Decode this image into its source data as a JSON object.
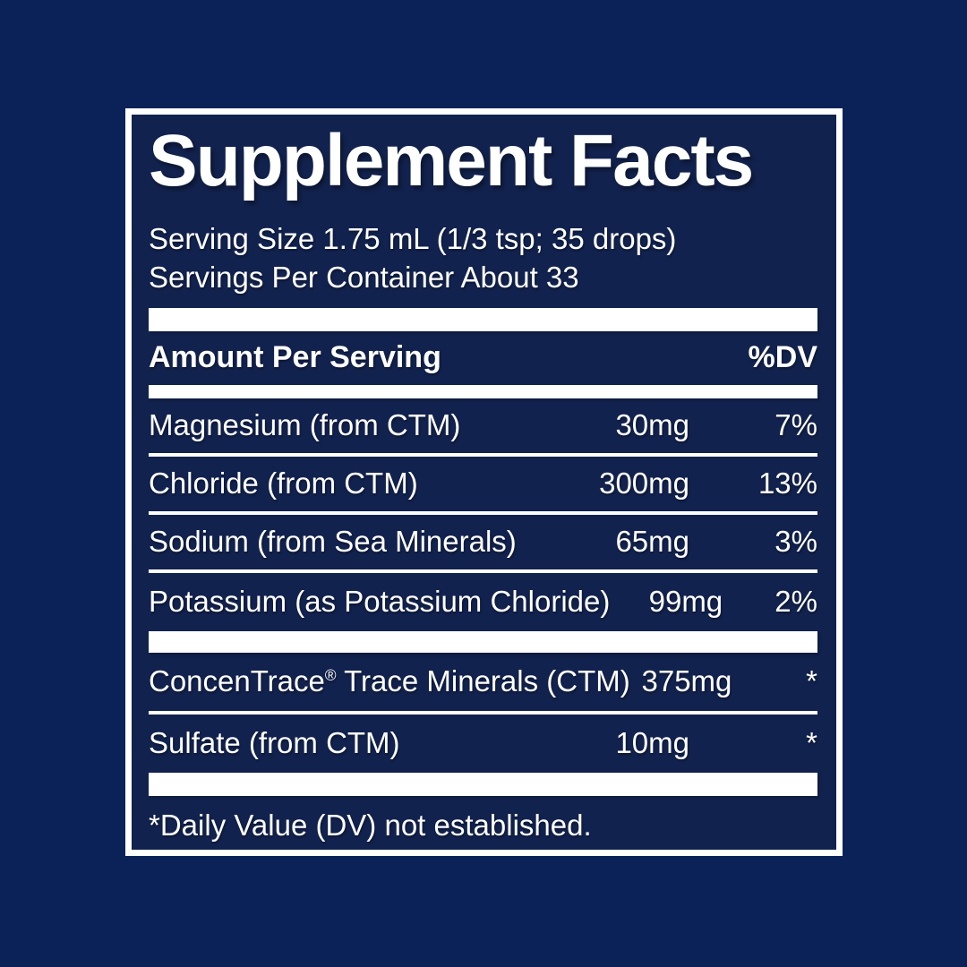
{
  "label": {
    "title": "Supplement Facts",
    "serving_size": "Serving Size 1.75 mL (1/3 tsp; 35 drops)",
    "servings_per_container": "Servings Per Container About 33",
    "header": {
      "amount_label": "Amount Per Serving",
      "dv_label": "%DV"
    },
    "rows": [
      {
        "name": "Magnesium (from CTM)",
        "amount": "30mg",
        "dv": "7%"
      },
      {
        "name": "Chloride (from CTM)",
        "amount": "300mg",
        "dv": "13%"
      },
      {
        "name": "Sodium (from Sea Minerals)",
        "amount": "65mg",
        "dv": "3%"
      },
      {
        "name": "Potassium (as Potassium Chloride)",
        "amount": "99mg",
        "dv": "2%"
      }
    ],
    "rows_secondary": [
      {
        "name_pre": "ConcenTrace",
        "name_sup": "®",
        "name_post": " Trace Minerals (CTM)",
        "amount": "375mg",
        "dv": "*"
      },
      {
        "name_pre": "Sulfate (from CTM)",
        "name_sup": "",
        "name_post": "",
        "amount": "10mg",
        "dv": "*"
      }
    ],
    "footnote": "*Daily Value (DV) not established.",
    "colors": {
      "background": "#0b2259",
      "panel": "#12224e",
      "text": "#ffffff"
    }
  }
}
